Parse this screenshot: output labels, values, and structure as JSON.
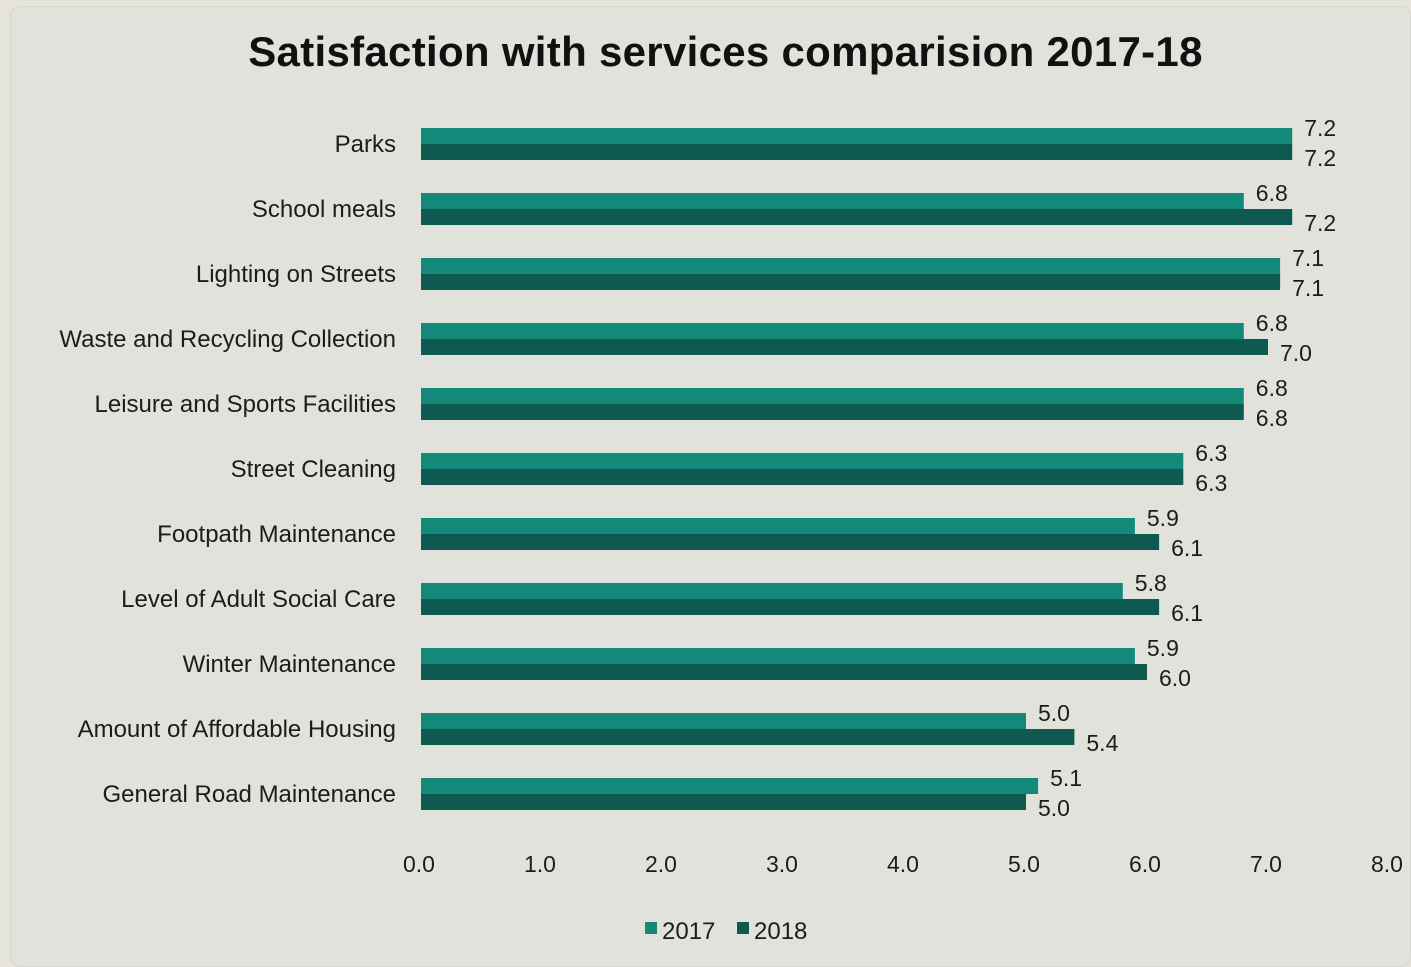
{
  "chart_data": {
    "type": "bar",
    "orientation": "horizontal",
    "title": "Satisfaction with services comparision 2017-18",
    "categories": [
      "Parks",
      "School meals",
      "Lighting on Streets",
      "Waste and Recycling Collection",
      "Leisure and Sports Facilities",
      "Street Cleaning",
      "Footpath Maintenance",
      "Level of Adult Social Care",
      "Winter Maintenance",
      "Amount of Affordable Housing",
      "General Road Maintenance"
    ],
    "series": [
      {
        "name": "2017",
        "color": "#138a79",
        "values": [
          7.2,
          6.8,
          7.1,
          6.8,
          6.8,
          6.3,
          5.9,
          5.8,
          5.9,
          5.0,
          5.1
        ]
      },
      {
        "name": "2018",
        "color": "#0e5a50",
        "values": [
          7.2,
          7.2,
          7.1,
          7.0,
          6.8,
          6.3,
          6.1,
          6.1,
          6.0,
          5.4,
          5.0
        ]
      }
    ],
    "xlim": [
      0,
      8
    ],
    "xticks": [
      "0.0",
      "1.0",
      "2.0",
      "3.0",
      "4.0",
      "5.0",
      "6.0",
      "7.0",
      "8.0"
    ],
    "grid": false,
    "legend_position": "bottom",
    "xlabel": "",
    "ylabel": ""
  }
}
